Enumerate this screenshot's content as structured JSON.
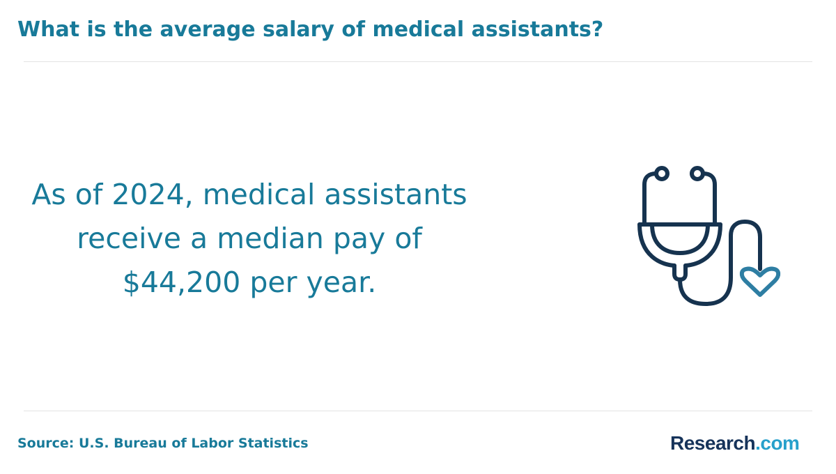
{
  "header": {
    "title": "What is the average salary of medical assistants?"
  },
  "main": {
    "statement": "As of 2024, medical assistants receive a median pay of $44,200 per year.",
    "illustration_icon": "stethoscope-heart-icon"
  },
  "footer": {
    "source": "Source: U.S. Bureau of Labor Statistics",
    "logo_main": "Research",
    "logo_suffix": ".com"
  },
  "colors": {
    "title_text": "#187a99",
    "icon_primary": "#16334f",
    "icon_heart": "#2e7ea3",
    "logo_main": "#16335a",
    "logo_suffix": "#27a0cb"
  }
}
